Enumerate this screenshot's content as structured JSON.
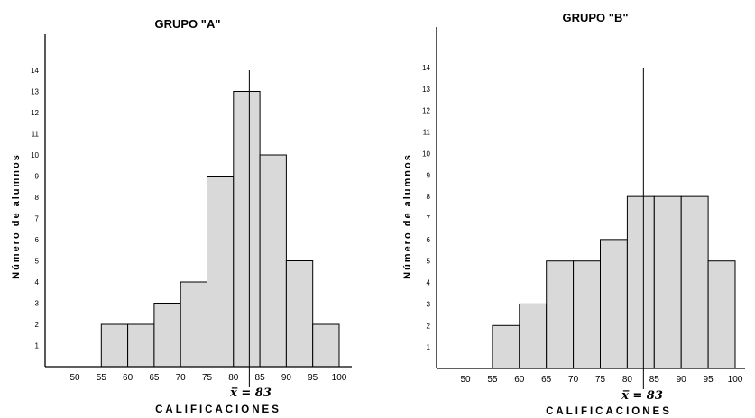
{
  "chart_data": [
    {
      "type": "bar",
      "title": "GRUPO \"A\"",
      "ylabel": "Número de alumnos",
      "xlabel": "CALIFICACIONES",
      "x_ticks": [
        50,
        55,
        60,
        65,
        70,
        75,
        80,
        85,
        90,
        95,
        100
      ],
      "y_ticks": [
        1,
        2,
        3,
        4,
        5,
        6,
        7,
        8,
        9,
        10,
        11,
        12,
        13,
        14
      ],
      "ylim": [
        0,
        14
      ],
      "bins": [
        [
          55,
          60
        ],
        [
          60,
          65
        ],
        [
          65,
          70
        ],
        [
          70,
          75
        ],
        [
          75,
          80
        ],
        [
          80,
          85
        ],
        [
          85,
          90
        ],
        [
          90,
          95
        ],
        [
          95,
          100
        ]
      ],
      "values": [
        2,
        2,
        3,
        4,
        9,
        13,
        10,
        5,
        2
      ],
      "mean_value": 83,
      "mean_label": "x̅ = 83"
    },
    {
      "type": "bar",
      "title": "GRUPO \"B\"",
      "ylabel": "Número de alumnos",
      "xlabel": "CALIFICACIONES",
      "x_ticks": [
        50,
        55,
        60,
        65,
        70,
        75,
        80,
        85,
        90,
        95,
        100
      ],
      "y_ticks": [
        1,
        2,
        3,
        4,
        5,
        6,
        7,
        8,
        9,
        10,
        11,
        12,
        13,
        14
      ],
      "ylim": [
        0,
        14
      ],
      "bins": [
        [
          55,
          60
        ],
        [
          60,
          65
        ],
        [
          65,
          70
        ],
        [
          70,
          75
        ],
        [
          75,
          80
        ],
        [
          80,
          85
        ],
        [
          85,
          90
        ],
        [
          90,
          95
        ],
        [
          95,
          100
        ]
      ],
      "values": [
        2,
        3,
        5,
        5,
        6,
        8,
        8,
        8,
        5
      ],
      "mean_value": 83,
      "mean_label": "x̅ = 83"
    }
  ]
}
